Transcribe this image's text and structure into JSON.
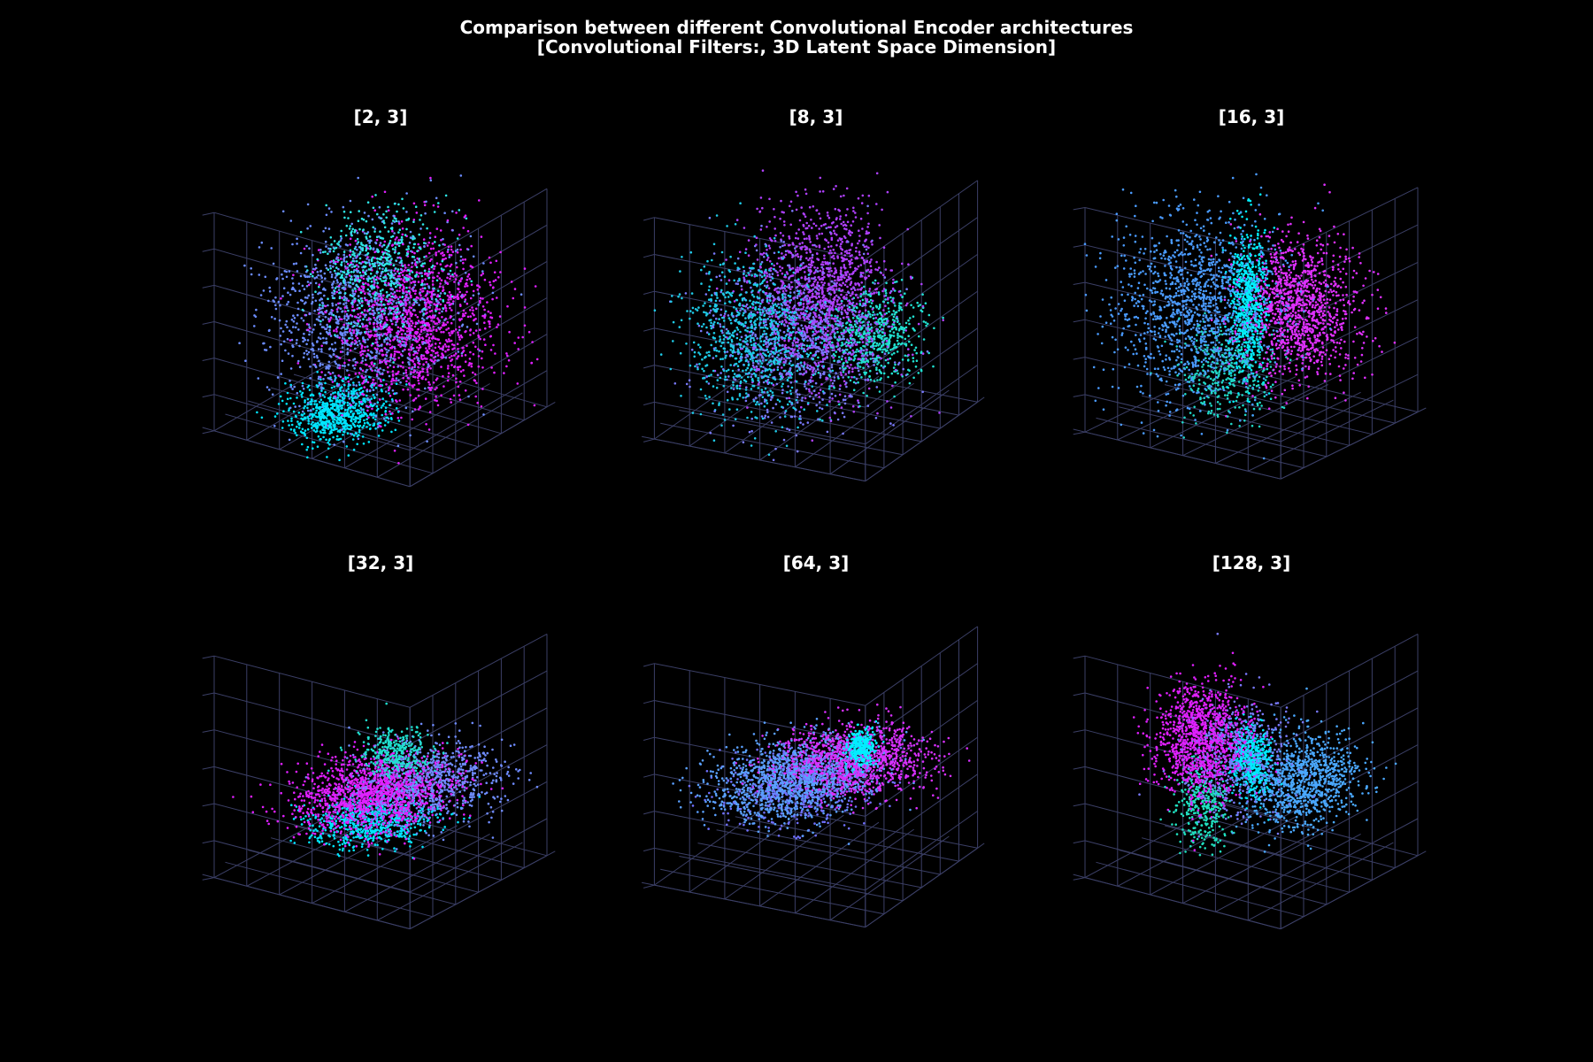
{
  "figure": {
    "title_line1": "Comparison between different Convolutional Encoder architectures",
    "title_line2": "[Convolutional Filters:, 3D Latent Space Dimension]",
    "background": "#000000",
    "grid_color": "#3b3f66"
  },
  "chart_data": [
    {
      "type": "scatter",
      "projection": "3d",
      "title": "[2, 3]",
      "colormap": [
        "#00ffff",
        "#8080ff",
        "#ff00ff"
      ],
      "clusters": [
        {
          "center": [
            -0.45,
            -0.1,
            -0.8
          ],
          "spread": [
            0.25,
            0.18,
            0.1
          ],
          "color": "#00e5ff",
          "count": 700
        },
        {
          "center": [
            -0.3,
            0.2,
            0.55
          ],
          "spread": [
            0.3,
            0.25,
            0.25
          ],
          "color": "#2ee6e6",
          "count": 500
        },
        {
          "center": [
            -0.2,
            -0.1,
            0.0
          ],
          "spread": [
            0.45,
            0.35,
            0.4
          ],
          "color": "#6b8cff",
          "count": 1100
        },
        {
          "center": [
            0.25,
            0.15,
            -0.15
          ],
          "spread": [
            0.4,
            0.35,
            0.35
          ],
          "color": "#e020ff",
          "count": 1400
        }
      ]
    },
    {
      "type": "scatter",
      "projection": "3d",
      "title": "[8, 3]",
      "colormap": [
        "#00ffff",
        "#8080ff",
        "#ff00ff"
      ],
      "clusters": [
        {
          "center": [
            -0.75,
            -0.2,
            -0.05
          ],
          "spread": [
            0.2,
            0.3,
            0.35
          ],
          "color": "#1ecbe8",
          "count": 800
        },
        {
          "center": [
            0.0,
            0.05,
            0.15
          ],
          "spread": [
            0.3,
            0.3,
            0.4
          ],
          "color": "#b040ff",
          "count": 1300
        },
        {
          "center": [
            0.45,
            0.3,
            -0.35
          ],
          "spread": [
            0.25,
            0.2,
            0.2
          ],
          "color": "#20e0d0",
          "count": 600
        },
        {
          "center": [
            -0.2,
            -0.1,
            -0.2
          ],
          "spread": [
            0.35,
            0.35,
            0.35
          ],
          "color": "#7a7aff",
          "count": 900
        }
      ]
    },
    {
      "type": "scatter",
      "projection": "3d",
      "title": "[16, 3]",
      "colormap": [
        "#00ffff",
        "#8080ff",
        "#ff00ff"
      ],
      "clusters": [
        {
          "center": [
            -0.4,
            -0.3,
            0.1
          ],
          "spread": [
            0.4,
            0.35,
            0.4
          ],
          "color": "#4a9bff",
          "count": 1300
        },
        {
          "center": [
            -0.05,
            0.0,
            0.1
          ],
          "spread": [
            0.06,
            0.08,
            0.35
          ],
          "color": "#00f0ff",
          "count": 600
        },
        {
          "center": [
            0.35,
            0.25,
            -0.05
          ],
          "spread": [
            0.25,
            0.25,
            0.3
          ],
          "color": "#e030ff",
          "count": 1200
        },
        {
          "center": [
            -0.05,
            -0.2,
            -0.55
          ],
          "spread": [
            0.2,
            0.2,
            0.2
          ],
          "color": "#20d8c8",
          "count": 400
        }
      ]
    },
    {
      "type": "scatter",
      "projection": "3d",
      "title": "[32, 3]",
      "colormap": [
        "#00ffff",
        "#8080ff",
        "#ff00ff"
      ],
      "clusters": [
        {
          "center": [
            -0.1,
            0.0,
            -0.55
          ],
          "spread": [
            0.3,
            0.25,
            0.04
          ],
          "color": "#00e5ff",
          "count": 700
        },
        {
          "center": [
            -0.1,
            0.0,
            -0.3
          ],
          "spread": [
            0.4,
            0.3,
            0.1
          ],
          "color": "#e020ff",
          "count": 1400
        },
        {
          "center": [
            0.3,
            0.3,
            -0.25
          ],
          "spread": [
            0.35,
            0.3,
            0.12
          ],
          "color": "#6f8cff",
          "count": 800
        },
        {
          "center": [
            -0.1,
            0.2,
            0.1
          ],
          "spread": [
            0.15,
            0.15,
            0.1
          ],
          "color": "#20e0d0",
          "count": 300
        }
      ]
    },
    {
      "type": "scatter",
      "projection": "3d",
      "title": "[64, 3]",
      "colormap": [
        "#00ffff",
        "#8080ff",
        "#ff00ff"
      ],
      "clusters": [
        {
          "center": [
            -0.25,
            -0.1,
            -0.15
          ],
          "spread": [
            0.45,
            0.3,
            0.1
          ],
          "color": "#5aa0ff",
          "count": 1200
        },
        {
          "center": [
            0.3,
            0.2,
            -0.1
          ],
          "spread": [
            0.35,
            0.3,
            0.1
          ],
          "color": "#d830ff",
          "count": 1200
        },
        {
          "center": [
            0.15,
            0.35,
            0.08
          ],
          "spread": [
            0.06,
            0.06,
            0.08
          ],
          "color": "#00f0ff",
          "count": 300
        },
        {
          "center": [
            -0.1,
            -0.1,
            -0.25
          ],
          "spread": [
            0.4,
            0.3,
            0.1
          ],
          "color": "#7070ff",
          "count": 600
        }
      ]
    },
    {
      "type": "scatter",
      "projection": "3d",
      "title": "[128, 3]",
      "colormap": [
        "#00ffff",
        "#8080ff",
        "#ff00ff"
      ],
      "clusters": [
        {
          "center": [
            -0.45,
            -0.2,
            0.25
          ],
          "spread": [
            0.22,
            0.18,
            0.25
          ],
          "color": "#e020ff",
          "count": 1100
        },
        {
          "center": [
            0.0,
            0.0,
            -0.05
          ],
          "spread": [
            0.08,
            0.08,
            0.15
          ],
          "color": "#00eaff",
          "count": 500
        },
        {
          "center": [
            0.4,
            0.25,
            -0.3
          ],
          "spread": [
            0.3,
            0.2,
            0.18
          ],
          "color": "#4aa8ff",
          "count": 1000
        },
        {
          "center": [
            -0.2,
            -0.35,
            -0.45
          ],
          "spread": [
            0.12,
            0.12,
            0.2
          ],
          "color": "#20e0c0",
          "count": 350
        },
        {
          "center": [
            -0.15,
            -0.05,
            0.05
          ],
          "spread": [
            0.25,
            0.2,
            0.25
          ],
          "color": "#7a7aff",
          "count": 500
        }
      ]
    }
  ]
}
